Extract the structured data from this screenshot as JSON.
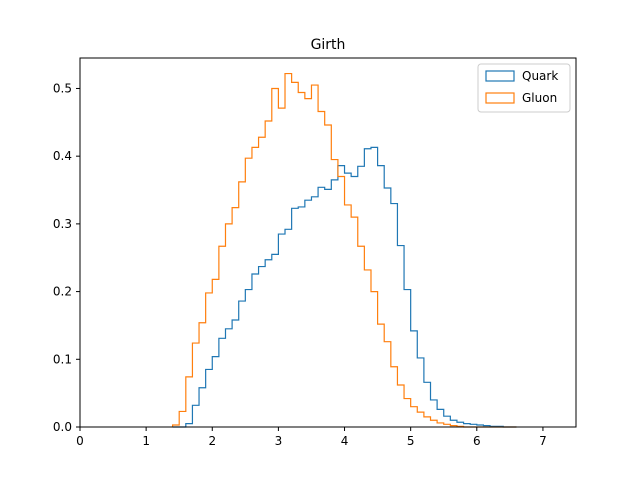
{
  "chart_data": {
    "type": "step-histogram",
    "title": "Girth",
    "xlabel": "",
    "ylabel": "",
    "xlim": [
      0,
      7.5
    ],
    "ylim": [
      0,
      0.545
    ],
    "xticks": [
      0,
      1,
      2,
      3,
      4,
      5,
      6,
      7
    ],
    "yticks": [
      0.0,
      0.1,
      0.2,
      0.3,
      0.4,
      0.5
    ],
    "xtick_labels": [
      "0",
      "1",
      "2",
      "3",
      "4",
      "5",
      "6",
      "7"
    ],
    "ytick_labels": [
      "0.0",
      "0.1",
      "0.2",
      "0.3",
      "0.4",
      "0.5"
    ],
    "grid": false,
    "legend_position": "top-right",
    "bin_start": 1.4,
    "bin_width": 0.1,
    "series": [
      {
        "name": "Quark",
        "color": "#1f77b4",
        "values": [
          0.0,
          0.0,
          0.005,
          0.032,
          0.058,
          0.085,
          0.104,
          0.131,
          0.145,
          0.158,
          0.186,
          0.203,
          0.226,
          0.237,
          0.247,
          0.255,
          0.285,
          0.292,
          0.323,
          0.325,
          0.335,
          0.34,
          0.354,
          0.351,
          0.365,
          0.386,
          0.375,
          0.37,
          0.385,
          0.411,
          0.413,
          0.386,
          0.353,
          0.33,
          0.268,
          0.203,
          0.142,
          0.102,
          0.066,
          0.04,
          0.026,
          0.016,
          0.01,
          0.007,
          0.005,
          0.004,
          0.003,
          0.002,
          0.001,
          0.001,
          0.0,
          0.0
        ]
      },
      {
        "name": "Gluon",
        "color": "#ff7f0e",
        "values": [
          0.003,
          0.023,
          0.074,
          0.124,
          0.154,
          0.198,
          0.218,
          0.267,
          0.3,
          0.324,
          0.362,
          0.397,
          0.413,
          0.428,
          0.452,
          0.5,
          0.471,
          0.522,
          0.509,
          0.494,
          0.485,
          0.505,
          0.466,
          0.446,
          0.395,
          0.37,
          0.328,
          0.31,
          0.267,
          0.232,
          0.2,
          0.152,
          0.126,
          0.089,
          0.062,
          0.042,
          0.03,
          0.022,
          0.015,
          0.01,
          0.006,
          0.004,
          0.002,
          0.001,
          0.0,
          0.0,
          0.0,
          0.0,
          0.0,
          0.0,
          0.0,
          0.0
        ]
      }
    ]
  }
}
